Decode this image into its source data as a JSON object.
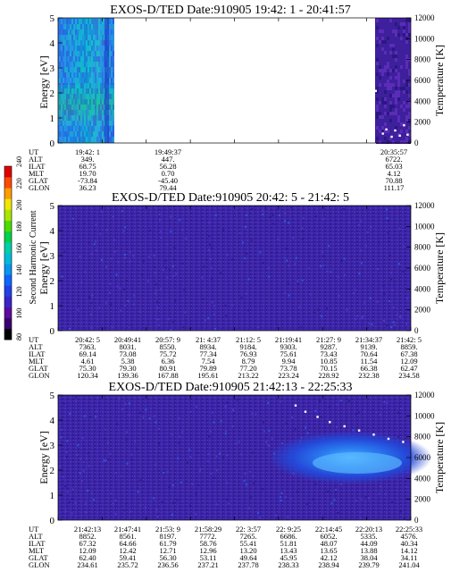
{
  "colorbar": {
    "label": "Second Harmonic Current",
    "ticks": [
      "80",
      "100",
      "120",
      "140",
      "160",
      "180",
      "200",
      "220",
      "240"
    ],
    "colors": [
      "#000000",
      "#3a0070",
      "#5b0ba0",
      "#3b24c8",
      "#1f42e6",
      "#0f66ff",
      "#0896f0",
      "#00bcd8",
      "#00d0a8",
      "#00d24a",
      "#4cdc00",
      "#a8e600",
      "#f0e600",
      "#ff9c00",
      "#ff4a00",
      "#e00000"
    ]
  },
  "chart_data": [
    {
      "type": "heatmap",
      "title": "EXOS-D/TED   Date:910905  19:42: 1 - 20:41:57",
      "ylabel": "Energy [eV]",
      "ylabel2": "Temperature [K]",
      "ylim": [
        0,
        5
      ],
      "ylim2": [
        0,
        12000
      ],
      "yticks": [
        "0",
        "1",
        "2",
        "3",
        "4",
        "5"
      ],
      "y2ticks": [
        "0",
        "2000",
        "4000",
        "6000",
        "8000",
        "10000",
        "12000"
      ],
      "data_segments": [
        {
          "from": "19:42: 1",
          "to": "19:49:37",
          "level": "high"
        },
        {
          "from": "20:35:57",
          "to": "20:41:57",
          "level": "low"
        }
      ],
      "temperature_points": [
        [
          20.6,
          5000
        ],
        [
          20.62,
          900
        ],
        [
          20.63,
          1300
        ],
        [
          20.645,
          600
        ],
        [
          20.655,
          1200
        ],
        [
          20.668,
          700
        ],
        [
          20.68,
          1700
        ],
        [
          20.69,
          800
        ]
      ],
      "table": {
        "rows": [
          {
            "label": "UT",
            "values": [
              "19:42: 1",
              "",
              "19:49:37",
              "",
              "",
              "",
              "",
              "",
              "20:35:57"
            ]
          },
          {
            "label": "ALT",
            "values": [
              "349.",
              "",
              "447.",
              "",
              "",
              "",
              "",
              "",
              "6722."
            ]
          },
          {
            "label": "ILAT",
            "values": [
              "68.75",
              "",
              "56.28",
              "",
              "",
              "",
              "",
              "",
              "65.03"
            ]
          },
          {
            "label": "MLT",
            "values": [
              "19.70",
              "",
              "0.70",
              "",
              "",
              "",
              "",
              "",
              "4.12"
            ]
          },
          {
            "label": "GLAT",
            "values": [
              "-73.84",
              "",
              "-45.40",
              "",
              "",
              "",
              "",
              "",
              "70.88"
            ]
          },
          {
            "label": "GLON",
            "values": [
              "36.23",
              "",
              "79.44",
              "",
              "",
              "",
              "",
              "",
              "111.17"
            ]
          }
        ]
      }
    },
    {
      "type": "heatmap",
      "title": "EXOS-D/TED   Date:910905  20:42: 5 - 21:42: 5",
      "ylabel": "Energy [eV]",
      "ylabel2": "Temperature [K]",
      "ylim": [
        0,
        5
      ],
      "ylim2": [
        0,
        12000
      ],
      "yticks": [
        "0",
        "1",
        "2",
        "3",
        "4",
        "5"
      ],
      "y2ticks": [
        "0",
        "2000",
        "4000",
        "6000",
        "8000",
        "10000",
        "12000"
      ],
      "data_segments": [
        {
          "from": "20:42: 5",
          "to": "21:42: 5",
          "level": "low"
        }
      ],
      "temperature_points": [],
      "table": {
        "rows": [
          {
            "label": "UT",
            "values": [
              "20:42: 5",
              "20:49:41",
              "20:57: 9",
              "21: 4:37",
              "21:12: 5",
              "21:19:41",
              "21:27: 9",
              "21:34:37",
              "21:42: 5"
            ]
          },
          {
            "label": "ALT",
            "values": [
              "7363.",
              "8031.",
              "8550.",
              "8934.",
              "9184.",
              "9303.",
              "9287.",
              "9139.",
              "8859."
            ]
          },
          {
            "label": "ILAT",
            "values": [
              "69.14",
              "73.08",
              "75.72",
              "77.34",
              "76.93",
              "75.61",
              "73.43",
              "70.64",
              "67.38"
            ]
          },
          {
            "label": "MLT",
            "values": [
              "4.61",
              "5.38",
              "6.36",
              "7.54",
              "8.79",
              "9.94",
              "10.85",
              "11.54",
              "12.09"
            ]
          },
          {
            "label": "GLAT",
            "values": [
              "75.30",
              "79.30",
              "80.91",
              "79.89",
              "77.20",
              "73.78",
              "70.15",
              "66.38",
              "62.47"
            ]
          },
          {
            "label": "GLON",
            "values": [
              "120.34",
              "139.36",
              "167.88",
              "195.61",
              "213.22",
              "223.24",
              "228.92",
              "232.38",
              "234.58"
            ]
          }
        ]
      }
    },
    {
      "type": "heatmap",
      "title": "EXOS-D/TED   Date:910905  21:42:13 - 22:25:33",
      "ylabel": "Energy [eV]",
      "ylabel2": "Temperature [K]",
      "ylim": [
        0,
        5
      ],
      "ylim2": [
        0,
        12000
      ],
      "yticks": [
        "0",
        "1",
        "2",
        "3",
        "4",
        "5"
      ],
      "y2ticks": [
        "0",
        "2000",
        "4000",
        "6000",
        "8000",
        "10000",
        "12000"
      ],
      "data_segments": [
        {
          "from": "21:42:13",
          "to": "22:25:33",
          "level": "low"
        }
      ],
      "enhancement": {
        "from": "22: 5:20",
        "to": "22:25:33",
        "energy_range_eV": [
          1.5,
          3.0
        ]
      },
      "temperature_points": [
        [
          22.19,
          11000
        ],
        [
          22.21,
          10400
        ],
        [
          22.235,
          9900
        ],
        [
          22.26,
          9400
        ],
        [
          22.29,
          9000
        ],
        [
          22.32,
          8600
        ],
        [
          22.35,
          8200
        ],
        [
          22.38,
          7800
        ],
        [
          22.41,
          7500
        ]
      ],
      "table": {
        "rows": [
          {
            "label": "UT",
            "values": [
              "21:42:13",
              "21:47:41",
              "21:53: 9",
              "21:58:29",
              "22: 3:57",
              "22: 9:25",
              "22:14:45",
              "22:20:13",
              "22:25:33"
            ]
          },
          {
            "label": "ALT",
            "values": [
              "8852.",
              "8561.",
              "8197.",
              "7772.",
              "7265.",
              "6686.",
              "6052.",
              "5335.",
              "4576."
            ]
          },
          {
            "label": "ILAT",
            "values": [
              "67.32",
              "64.66",
              "61.79",
              "58.76",
              "55.41",
              "51.81",
              "48.07",
              "44.09",
              "40.34"
            ]
          },
          {
            "label": "MLT",
            "values": [
              "12.09",
              "12.42",
              "12.71",
              "12.96",
              "13.20",
              "13.43",
              "13.65",
              "13.88",
              "14.12"
            ]
          },
          {
            "label": "GLAT",
            "values": [
              "62.40",
              "59.41",
              "56.30",
              "53.11",
              "49.64",
              "45.95",
              "42.12",
              "38.04",
              "34.11"
            ]
          },
          {
            "label": "GLON",
            "values": [
              "234.61",
              "235.72",
              "236.56",
              "237.21",
              "237.78",
              "238.33",
              "238.94",
              "239.79",
              "241.04"
            ]
          }
        ]
      }
    }
  ]
}
